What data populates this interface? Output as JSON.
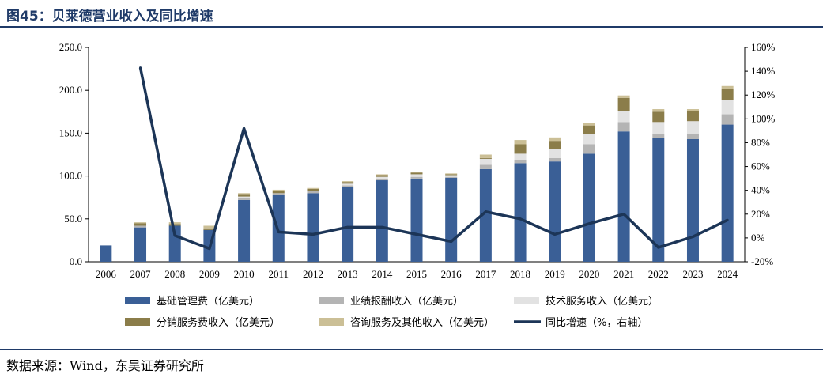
{
  "header": {
    "title": "图45：贝莱德营业收入及同比增速"
  },
  "footer": {
    "source": "数据来源：Wind，东吴证券研究所"
  },
  "chart_data": {
    "type": "bar",
    "stacked": true,
    "categories": [
      "2006",
      "2007",
      "2008",
      "2009",
      "2010",
      "2011",
      "2012",
      "2013",
      "2014",
      "2015",
      "2016",
      "2017",
      "2018",
      "2019",
      "2020",
      "2021",
      "2022",
      "2023",
      "2024"
    ],
    "y_left": {
      "range": [
        0,
        250
      ],
      "ticks": [
        "0.0",
        "50.0",
        "100.0",
        "150.0",
        "200.0",
        "250.0"
      ]
    },
    "y_right": {
      "range": [
        -20,
        160
      ],
      "ticks": [
        "-20%",
        "0%",
        "20%",
        "40%",
        "60%",
        "80%",
        "100%",
        "120%",
        "140%",
        "160%"
      ]
    },
    "series": [
      {
        "name": "基础管理费（亿美元）",
        "color": "#3a5f96",
        "values": [
          19,
          40,
          42,
          37,
          72,
          78,
          80,
          87,
          95,
          97,
          98,
          108,
          115,
          117,
          126,
          152,
          144,
          143,
          160
        ]
      },
      {
        "name": "业绩报酬收入（亿美元）",
        "color": "#b4b4b4",
        "values": [
          0,
          2,
          0,
          0,
          2,
          2,
          3,
          2,
          2,
          2,
          1,
          5,
          4,
          4,
          11,
          11,
          5,
          6,
          12
        ]
      },
      {
        "name": "技术服务收入（亿美元）",
        "color": "#e2e2e2",
        "values": [
          0,
          0,
          0,
          0,
          2,
          0,
          0,
          2,
          2,
          3,
          2,
          7,
          7,
          10,
          12,
          13,
          14,
          15,
          17
        ]
      },
      {
        "name": "分销服务费收入（亿美元）",
        "color": "#8b7d4a",
        "values": [
          0,
          3,
          2,
          2,
          3,
          3,
          2,
          2,
          2,
          2,
          1,
          1,
          11,
          10,
          10,
          15,
          12,
          12,
          13
        ]
      },
      {
        "name": "咨询服务及其他收入（亿美元）",
        "color": "#cbbf96",
        "values": [
          0,
          1,
          2,
          3,
          1,
          1,
          1,
          1,
          1,
          1,
          1,
          4,
          5,
          4,
          3,
          3,
          3,
          2,
          3
        ]
      }
    ],
    "line": {
      "name": "同比增速（%，右轴）",
      "color": "#1c3557",
      "axis": "right",
      "values": [
        null,
        143,
        2,
        -9,
        92,
        5,
        3,
        9,
        9,
        3,
        -3,
        22,
        16,
        3,
        12,
        20,
        -8,
        1,
        15
      ]
    },
    "legend": {
      "placement": "bottom"
    }
  }
}
